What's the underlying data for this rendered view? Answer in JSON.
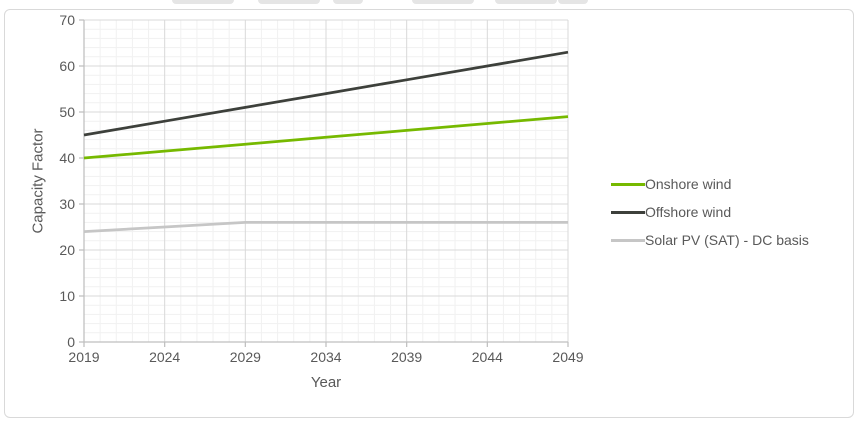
{
  "page": {
    "background": "#ffffff",
    "panel_border_color": "#d9d9d9"
  },
  "chart_data": {
    "type": "line",
    "title": "",
    "xlabel": "Year",
    "ylabel": "Capacity Factor",
    "xlim": [
      2019,
      2049
    ],
    "ylim": [
      0,
      70
    ],
    "x_ticks": [
      2019,
      2024,
      2029,
      2034,
      2039,
      2044,
      2049
    ],
    "y_ticks": [
      0,
      10,
      20,
      30,
      40,
      50,
      60,
      70
    ],
    "minor_x_step": 1,
    "minor_y_step": 2,
    "grid": true,
    "legend_position": "right",
    "x": [
      2019,
      2024,
      2029,
      2034,
      2039,
      2044,
      2049
    ],
    "series": [
      {
        "name": "Onshore wind",
        "color": "#76b900",
        "values": [
          40,
          41.5,
          43,
          44.5,
          46,
          47.5,
          49
        ]
      },
      {
        "name": "Offshore wind",
        "color": "#3d403b",
        "values": [
          45,
          48,
          51,
          54,
          57,
          60,
          63
        ]
      },
      {
        "name": "Solar PV (SAT) - DC basis",
        "color": "#c6c6c6",
        "values": [
          24,
          25,
          26,
          26,
          26,
          26,
          26
        ]
      }
    ],
    "style": {
      "axis_color": "#bfbfbf",
      "grid_major_color": "#d9d9d9",
      "grid_minor_color": "#f1f1f1",
      "tick_label_color": "#595959",
      "line_width": 2.75
    }
  }
}
